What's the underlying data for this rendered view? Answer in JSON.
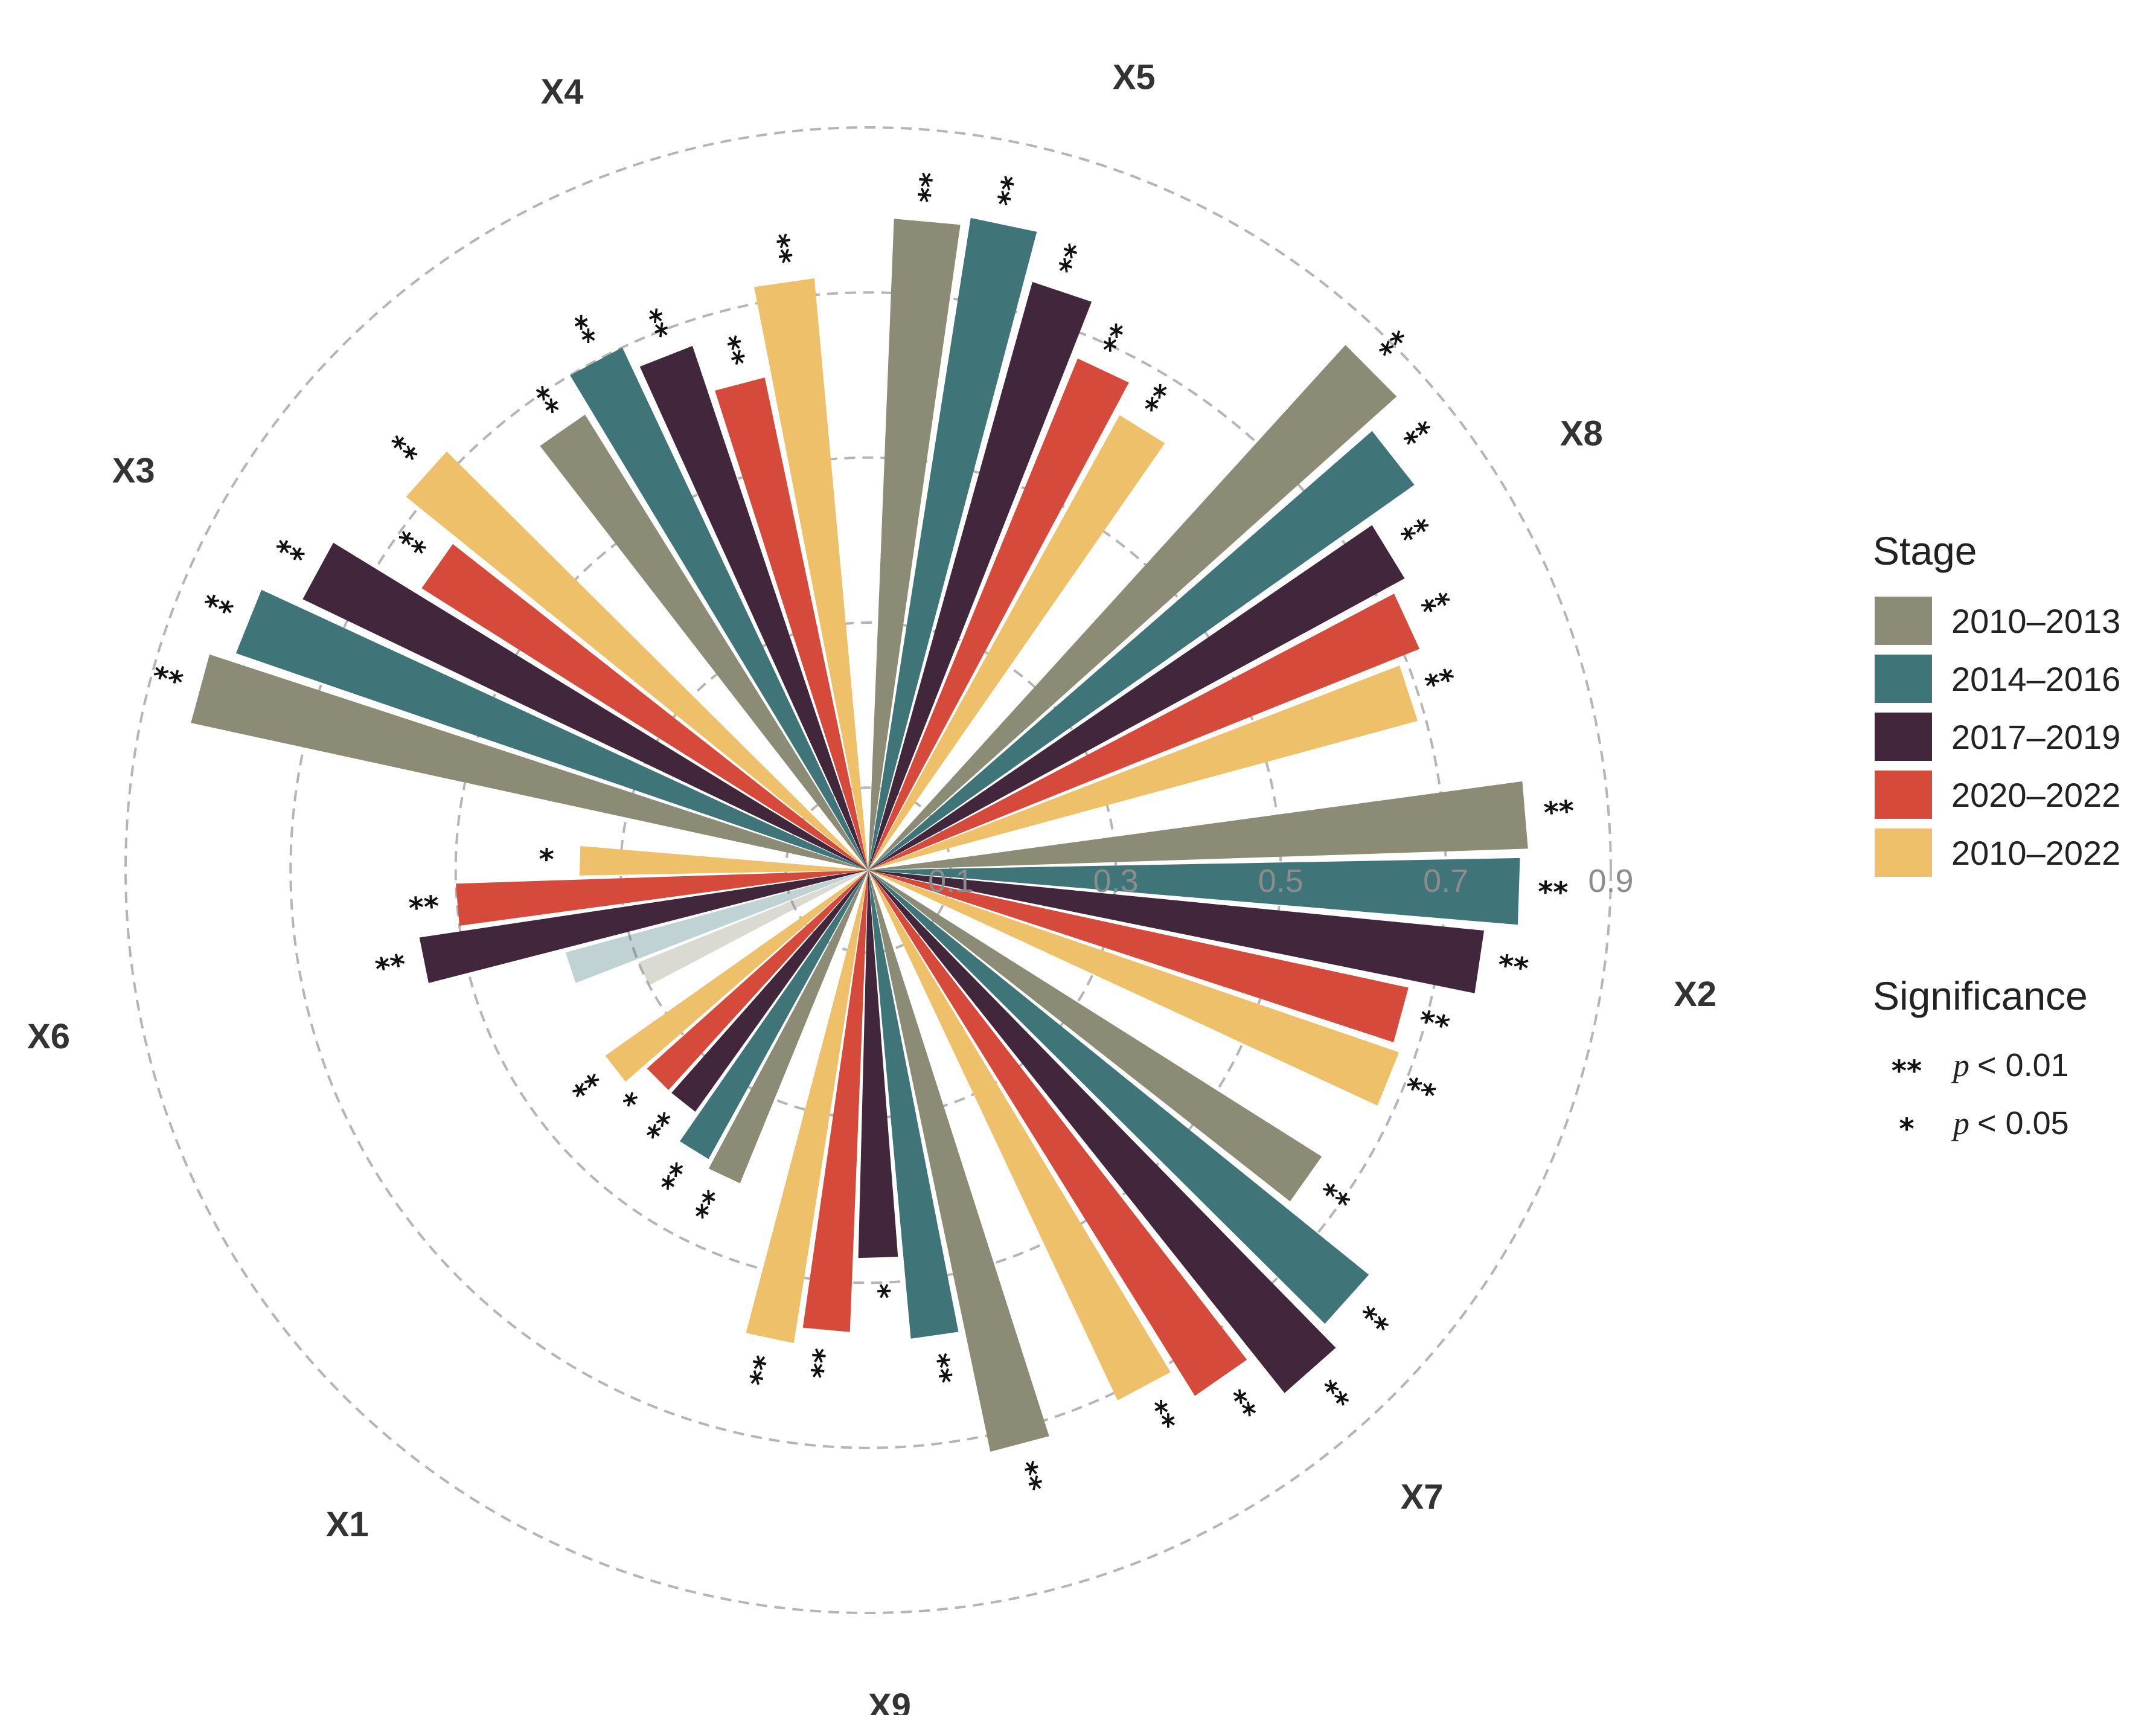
{
  "chart_data": {
    "type": "polar-bar",
    "title": "",
    "series_names": [
      "2010–2013",
      "2014–2016",
      "2017–2019",
      "2020–2022",
      "2010–2022"
    ],
    "colors": {
      "2010–2013": "#8c8b75",
      "2014–2016": "#3f7478",
      "2017–2019": "#42273c",
      "2020–2022": "#d54a3a",
      "2010–2022": "#eec06a"
    },
    "radial_ticks": [
      "0.1",
      "0.3",
      "0.5",
      "0.7",
      "0.9"
    ],
    "radial_tick_values": [
      0.1,
      0.3,
      0.5,
      0.7,
      0.9
    ],
    "radial_max": 0.9,
    "groups": [
      {
        "name": "X3",
        "values": [
          0.84,
          0.81,
          0.76,
          0.64,
          0.72
        ],
        "sig": [
          "**",
          "**",
          "**",
          "**",
          "**"
        ],
        "faded": [
          false,
          false,
          false,
          false,
          false
        ]
      },
      {
        "name": "X4",
        "values": [
          0.65,
          0.7,
          0.67,
          0.61,
          0.72
        ],
        "sig": [
          "**",
          "**",
          "**",
          "**",
          "**"
        ],
        "faded": [
          false,
          false,
          false,
          false,
          false
        ]
      },
      {
        "name": "X5",
        "values": [
          0.79,
          0.8,
          0.74,
          0.67,
          0.63
        ],
        "sig": [
          "**",
          "**",
          "**",
          "**",
          "**"
        ],
        "faded": [
          false,
          false,
          false,
          false,
          false
        ]
      },
      {
        "name": "X8",
        "values": [
          0.86,
          0.81,
          0.74,
          0.72,
          0.69
        ],
        "sig": [
          "**",
          "**",
          "**",
          "**",
          "**"
        ],
        "faded": [
          false,
          false,
          false,
          false,
          false
        ]
      },
      {
        "name": "X2",
        "values": [
          0.8,
          0.79,
          0.75,
          0.67,
          0.68
        ],
        "sig": [
          "**",
          "**",
          "**",
          "**",
          "**"
        ],
        "faded": [
          false,
          false,
          false,
          false,
          false
        ]
      },
      {
        "name": "X7",
        "values": [
          0.65,
          0.78,
          0.81,
          0.75,
          0.71
        ],
        "sig": [
          "**",
          "**",
          "**",
          "**",
          "**"
        ],
        "faded": [
          false,
          false,
          false,
          false,
          false
        ]
      },
      {
        "name": "X9",
        "values": [
          0.72,
          0.57,
          0.47,
          0.56,
          0.58
        ],
        "sig": [
          "**",
          "**",
          "*",
          "**",
          "**"
        ],
        "faded": [
          false,
          false,
          false,
          false,
          false
        ]
      },
      {
        "name": "X1",
        "values": [
          0.41,
          0.4,
          0.36,
          0.36,
          0.39
        ],
        "sig": [
          "**",
          "**",
          "**",
          "*",
          "**"
        ],
        "faded": [
          false,
          false,
          false,
          false,
          false
        ]
      },
      {
        "name": "X6",
        "values": [
          0.3,
          0.38,
          0.55,
          0.5,
          0.35
        ],
        "sig": [
          "",
          "",
          "**",
          "**",
          "*"
        ],
        "faded": [
          true,
          true,
          false,
          false,
          false
        ]
      }
    ]
  },
  "legend": {
    "stage_title": "Stage",
    "stages": [
      "2010–2013",
      "2014–2016",
      "2017–2019",
      "2020–2022",
      "2010–2022"
    ],
    "significance_title": "Significance",
    "significance": [
      {
        "stars": "**",
        "p": "p",
        "op": "< 0.01"
      },
      {
        "stars": "*",
        "p": "p",
        "op": "< 0.05"
      }
    ]
  }
}
